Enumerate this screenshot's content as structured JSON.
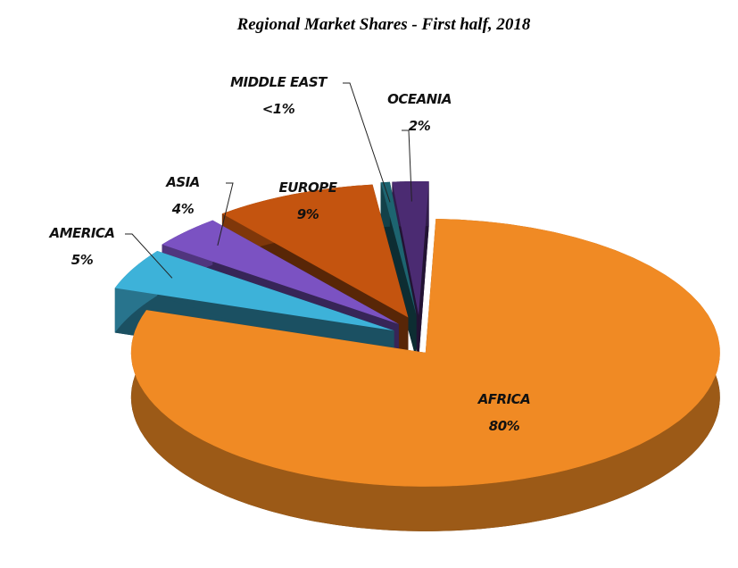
{
  "chart_data": {
    "type": "pie",
    "title": "Regional Market Shares - First half, 2018",
    "categories": [
      "AFRICA",
      "AMERICA",
      "ASIA",
      "EUROPE",
      "MIDDLE EAST",
      "OCEANIA"
    ],
    "values": [
      80,
      5,
      4,
      9,
      0.5,
      2
    ],
    "value_labels": [
      "80%",
      "5%",
      "4%",
      "9%",
      "<1%",
      "2%"
    ],
    "colors": [
      "#f08a24",
      "#3db2d9",
      "#7b52c2",
      "#c4540f",
      "#1d6470",
      "#4b2b72"
    ]
  }
}
